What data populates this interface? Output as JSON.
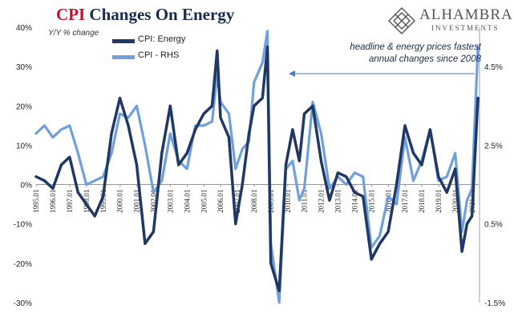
{
  "header": {
    "title_red": "CPI",
    "title_rest": "Changes On Energy",
    "subtitle": "Y/Y % change"
  },
  "logo": {
    "name": "ALHAMBRA",
    "tagline": "INVESTMENTS"
  },
  "annotation": {
    "line1": "headline & energy prices  fastest",
    "line2": "annual changes since 2008"
  },
  "colors": {
    "energy": "#1f3864",
    "cpi": "#6fa0dc",
    "arrow": "#4a7bbf"
  },
  "chart_data": {
    "type": "line",
    "title": "CPI Changes On Energy",
    "subtitle": "Y/Y % change",
    "legend_position": "top-left",
    "grid": false,
    "left_axis": {
      "range": [
        -30,
        40
      ],
      "ticks": [
        "40%",
        "30%",
        "20%",
        "10%",
        "0%",
        "-10%",
        "-20%",
        "-30%"
      ],
      "tick_values": [
        40,
        30,
        20,
        10,
        0,
        -10,
        -20,
        -30
      ]
    },
    "right_axis": {
      "range": [
        -1.5,
        5.5
      ],
      "ticks": [
        "4.5%",
        "2.5%",
        "0.5%",
        "-1.5%"
      ],
      "tick_values": [
        4.5,
        2.5,
        0.5,
        -1.5
      ]
    },
    "x_tick_labels": [
      "1995.01",
      "1996.01",
      "1997.01",
      "1998.01",
      "1999.01",
      "2000.01",
      "2001.01",
      "2002.01",
      "2003.01",
      "2004.01",
      "2005.01",
      "2006.01",
      "2007.01",
      "2008.01",
      "2009.01",
      "2010.01",
      "2011.01",
      "2012.01",
      "2013.01",
      "2014.01",
      "2015.01",
      "2016.01",
      "2017.01",
      "2018.01",
      "2019.01",
      "2020.01",
      "2021.01"
    ],
    "x_range": [
      1995.0,
      2021.4
    ],
    "series": [
      {
        "name": "CPI: Energy",
        "axis": "left",
        "x": [
          1995.0,
          1995.5,
          1996.0,
          1996.5,
          1997.0,
          1997.5,
          1998.0,
          1998.5,
          1999.0,
          1999.5,
          2000.0,
          2000.5,
          2001.0,
          2001.5,
          2002.0,
          2002.5,
          2003.0,
          2003.5,
          2004.0,
          2004.5,
          2005.0,
          2005.5,
          2005.8,
          2006.0,
          2006.5,
          2006.9,
          2007.3,
          2007.7,
          2008.0,
          2008.5,
          2008.8,
          2009.0,
          2009.5,
          2009.9,
          2010.3,
          2010.7,
          2011.0,
          2011.5,
          2012.0,
          2012.5,
          2013.0,
          2013.5,
          2014.0,
          2014.5,
          2015.0,
          2015.5,
          2016.0,
          2016.5,
          2017.0,
          2017.5,
          2018.0,
          2018.5,
          2019.0,
          2019.5,
          2020.0,
          2020.4,
          2020.7,
          2021.0,
          2021.35
        ],
        "y": [
          2,
          1,
          -1,
          5,
          7,
          -2,
          -5,
          -8,
          -3,
          13,
          22,
          15,
          5,
          -15,
          -12,
          8,
          20,
          5,
          8,
          14,
          18,
          20,
          34,
          17,
          12,
          -10,
          0,
          13,
          20,
          22,
          35,
          -20,
          -27,
          5,
          14,
          6,
          18,
          20,
          6,
          -4,
          3,
          2,
          -2,
          -3,
          -19,
          -15,
          -12,
          0,
          15,
          8,
          5,
          14,
          2,
          -2,
          4,
          -17,
          -10,
          -8,
          22
        ]
      },
      {
        "name": "CPI - RHS",
        "axis": "right",
        "x": [
          1995.0,
          1995.5,
          1996.0,
          1996.5,
          1997.0,
          1997.5,
          1998.0,
          1998.5,
          1999.0,
          1999.5,
          2000.0,
          2000.5,
          2001.0,
          2001.5,
          2002.0,
          2002.5,
          2003.0,
          2003.5,
          2004.0,
          2004.5,
          2005.0,
          2005.5,
          2005.8,
          2006.0,
          2006.5,
          2006.9,
          2007.3,
          2007.7,
          2008.0,
          2008.5,
          2008.8,
          2009.0,
          2009.5,
          2009.9,
          2010.3,
          2010.7,
          2011.0,
          2011.5,
          2012.0,
          2012.5,
          2013.0,
          2013.5,
          2014.0,
          2014.5,
          2015.0,
          2015.5,
          2016.0,
          2016.5,
          2017.0,
          2017.5,
          2018.0,
          2018.5,
          2019.0,
          2019.5,
          2020.0,
          2020.4,
          2020.7,
          2021.0,
          2021.35
        ],
        "y": [
          2.8,
          3.0,
          2.7,
          2.9,
          3.0,
          2.3,
          1.5,
          1.6,
          1.7,
          2.3,
          3.3,
          3.2,
          3.5,
          2.5,
          1.3,
          1.6,
          2.8,
          2.1,
          1.9,
          3.0,
          3.0,
          3.1,
          4.3,
          3.6,
          3.3,
          1.9,
          2.4,
          2.6,
          4.1,
          4.6,
          5.4,
          0.0,
          -1.5,
          1.9,
          2.1,
          1.1,
          1.4,
          3.6,
          2.8,
          1.4,
          1.7,
          1.5,
          1.8,
          1.7,
          -0.1,
          0.2,
          1.2,
          1.0,
          2.7,
          1.6,
          2.1,
          2.9,
          1.6,
          1.7,
          2.3,
          0.3,
          1.1,
          1.4,
          5.0
        ]
      }
    ]
  },
  "legend": {
    "energy_label": "CPI: Energy",
    "cpi_label": "CPI - RHS"
  }
}
